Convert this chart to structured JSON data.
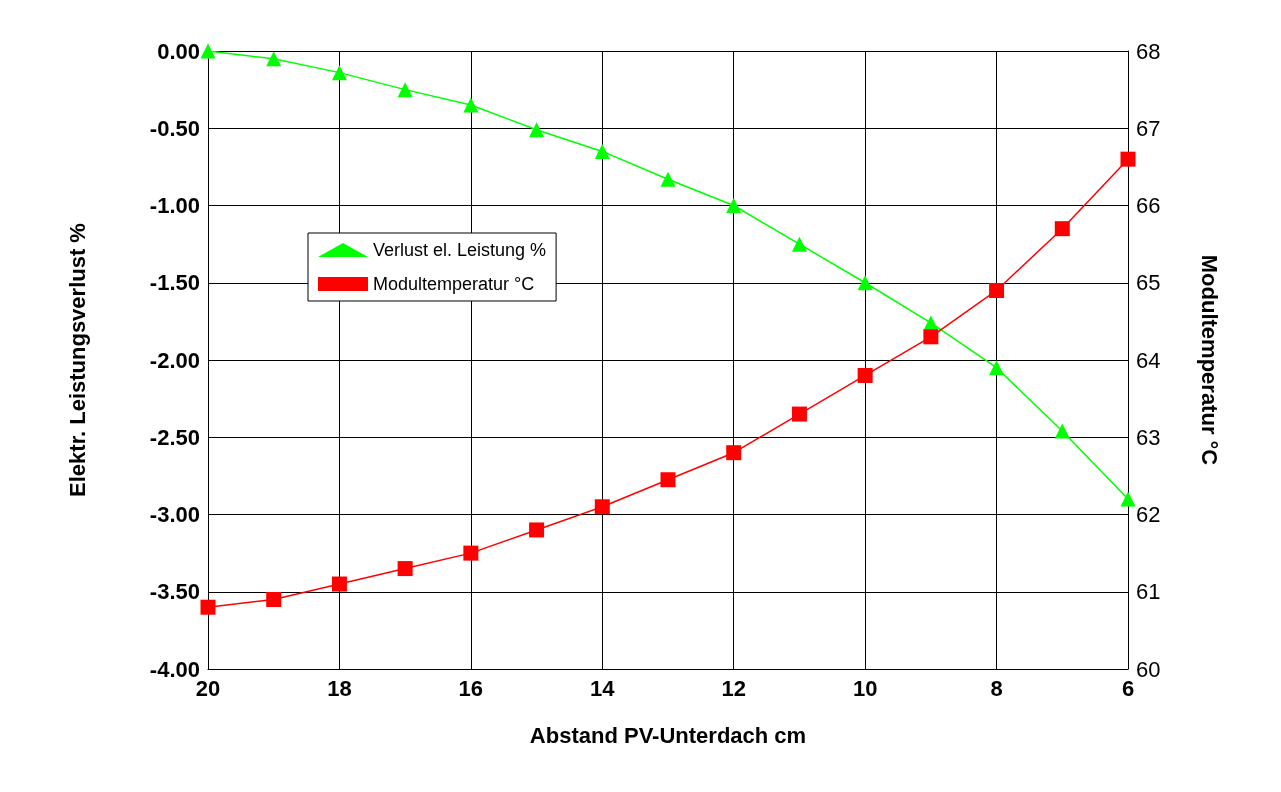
{
  "chart_data": {
    "type": "line",
    "xlabel": "Abstand PV-Unterdach cm",
    "ylabel": "Elektr. Leistungsverlust %",
    "y2label": "Modultemperatur °C",
    "x": [
      20,
      19,
      18,
      17,
      16,
      15,
      14,
      13,
      12,
      11,
      10,
      9,
      8,
      7,
      6
    ],
    "series": [
      {
        "name": "Verlust el. Leistung %",
        "color": "#00ff00",
        "marker": "triangle",
        "values": [
          0,
          -0.05,
          -0.14,
          -0.25,
          -0.35,
          -0.51,
          -0.65,
          -0.83,
          -1.0,
          -1.25,
          -1.5,
          -1.76,
          -2.05,
          -2.46,
          -2.9
        ]
      },
      {
        "name": "Modultemperatur °C",
        "color": "#ff0000",
        "marker": "square",
        "axis": "y2",
        "values": [
          60.8,
          60.9,
          61.1,
          61.3,
          61.5,
          61.8,
          62.1,
          62.45,
          62.8,
          63.3,
          63.8,
          64.3,
          64.9,
          65.7,
          66.6
        ]
      }
    ],
    "xlim": [
      20,
      6
    ],
    "xticks": [
      20,
      18,
      16,
      14,
      12,
      10,
      8,
      6
    ],
    "ylim": [
      -4,
      0
    ],
    "yticks": [
      {
        "value": 0,
        "label": "0.00"
      },
      {
        "value": -0.5,
        "label": "-0.50"
      },
      {
        "value": -1,
        "label": "-1.00"
      },
      {
        "value": -1.5,
        "label": "-1.50"
      },
      {
        "value": -2,
        "label": "-2.00"
      },
      {
        "value": -2.5,
        "label": "-2.50"
      },
      {
        "value": -3,
        "label": "-3.00"
      },
      {
        "value": -3.5,
        "label": "-3.50"
      },
      {
        "value": -4,
        "label": "-4.00"
      }
    ],
    "y2lim": [
      60,
      68
    ],
    "y2ticks": [
      60,
      61,
      62,
      63,
      64,
      65,
      66,
      67,
      68
    ],
    "grid": true,
    "legend": "left",
    "line_style": "solid"
  }
}
